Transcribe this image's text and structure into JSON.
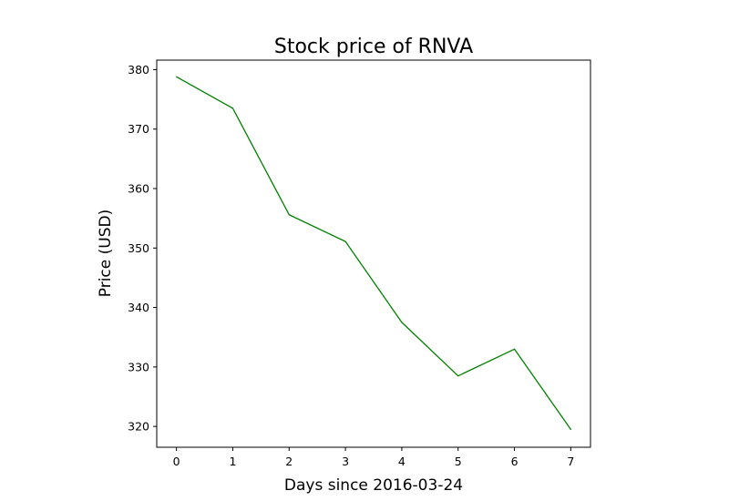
{
  "chart_data": {
    "type": "line",
    "title": "Stock price of RNVA",
    "xlabel": "Days since 2016-03-24",
    "ylabel": "Price (USD)",
    "x": [
      0,
      1,
      2,
      3,
      4,
      5,
      6,
      7
    ],
    "series": [
      {
        "values": [
          378.8,
          373.5,
          355.6,
          351.1,
          337.5,
          328.5,
          333.0,
          319.5
        ],
        "color": "#008000"
      }
    ],
    "xlim": [
      -0.35,
      7.35
    ],
    "ylim": [
      316.5,
      381.6
    ],
    "xticks": [
      "0",
      "1",
      "2",
      "3",
      "4",
      "5",
      "6",
      "7"
    ],
    "yticks": [
      "320",
      "330",
      "340",
      "350",
      "360",
      "370",
      "380"
    ],
    "grid": false,
    "legend": "none"
  }
}
